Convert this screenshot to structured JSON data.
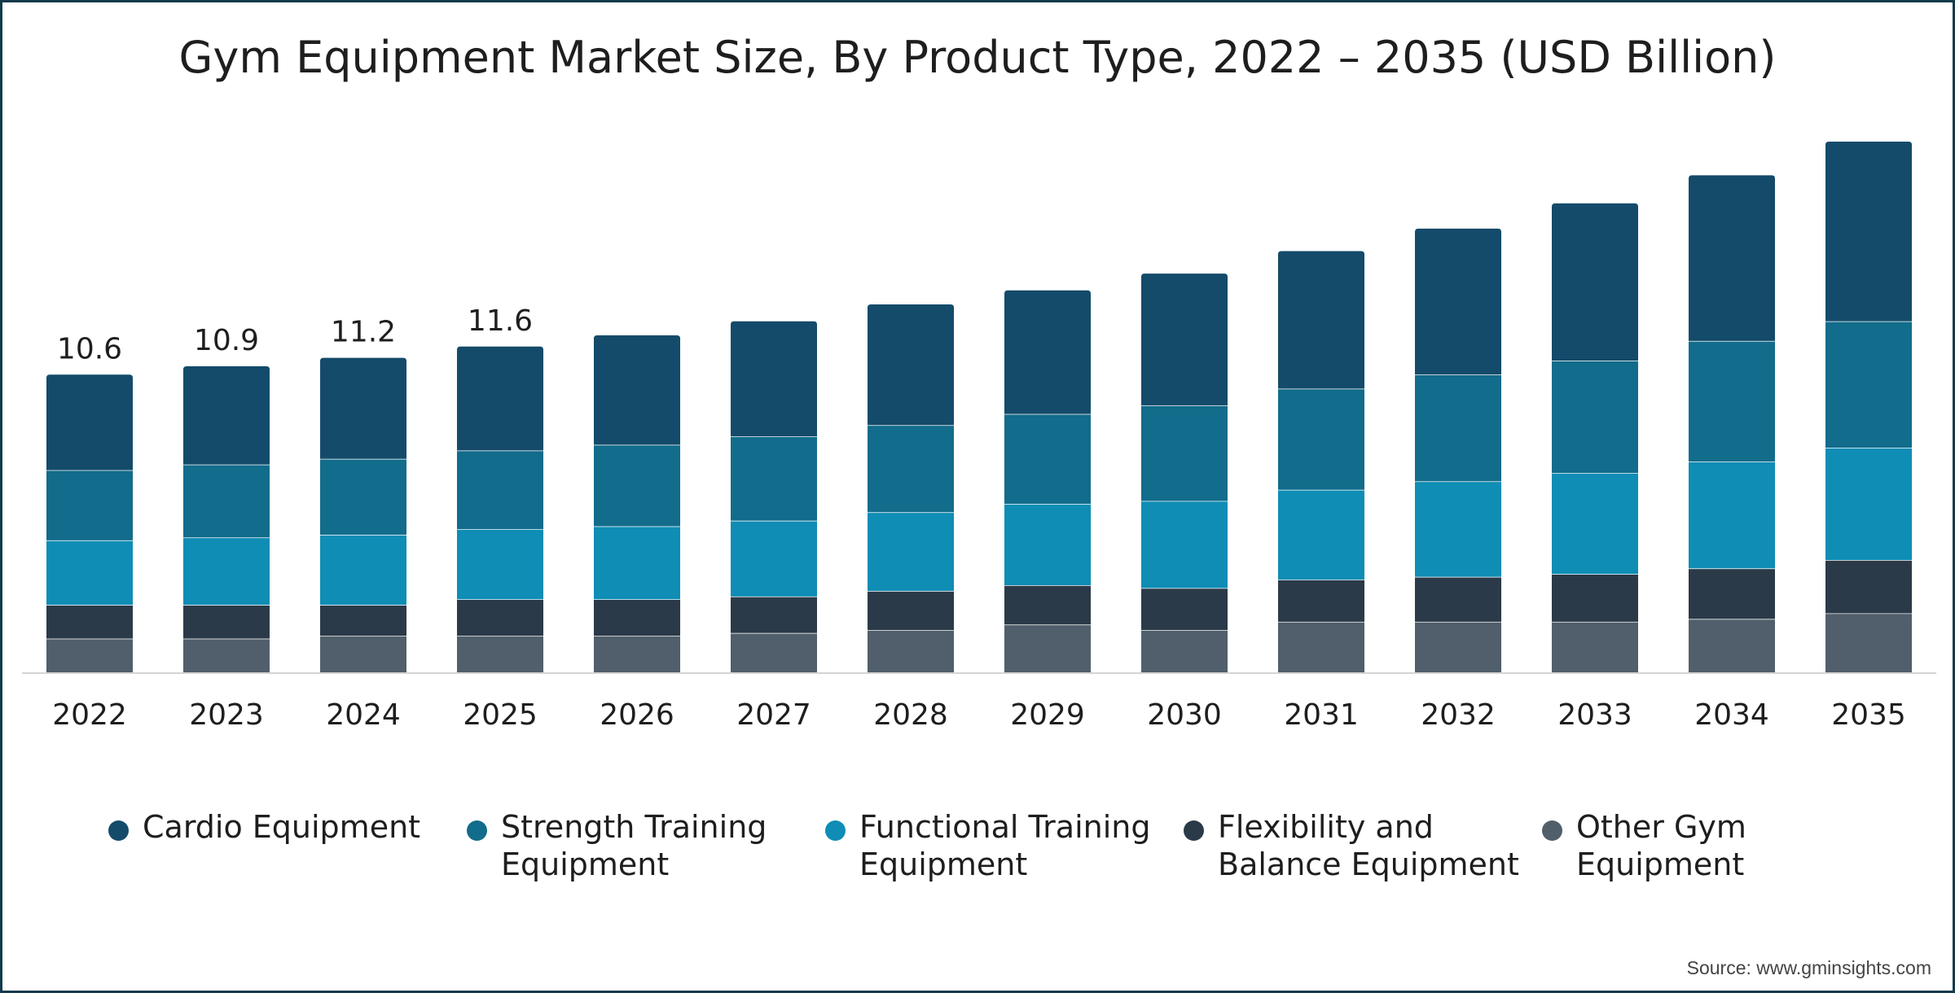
{
  "chart_data": {
    "type": "bar",
    "stacked": true,
    "title": "Gym Equipment Market Size, By Product Type, 2022 – 2035 (USD Billion)",
    "xlabel": "",
    "ylabel": "",
    "ylim": [
      0,
      20
    ],
    "grid": false,
    "legend_position": "bottom",
    "categories": [
      "2022",
      "2023",
      "2024",
      "2025",
      "2026",
      "2027",
      "2028",
      "2029",
      "2030",
      "2031",
      "2032",
      "2033",
      "2034",
      "2035"
    ],
    "series": [
      {
        "name": "Other Gym Equipment",
        "color": "#505f6b",
        "values": [
          1.2,
          1.2,
          1.3,
          1.3,
          1.3,
          1.4,
          1.5,
          1.7,
          1.5,
          1.8,
          1.8,
          1.8,
          1.9,
          2.1
        ]
      },
      {
        "name": "Flexibility and Balance Equipment",
        "color": "#2b3a48",
        "values": [
          1.2,
          1.2,
          1.1,
          1.3,
          1.3,
          1.3,
          1.4,
          1.4,
          1.5,
          1.5,
          1.6,
          1.7,
          1.8,
          1.9
        ]
      },
      {
        "name": "Functional Training Equipment",
        "color": "#0f8db5",
        "values": [
          2.3,
          2.4,
          2.5,
          2.5,
          2.6,
          2.7,
          2.8,
          2.9,
          3.1,
          3.2,
          3.4,
          3.6,
          3.8,
          4.0
        ]
      },
      {
        "name": "Strength Training Equipment",
        "color": "#126c8b",
        "values": [
          2.5,
          2.6,
          2.7,
          2.8,
          2.9,
          3.0,
          3.1,
          3.2,
          3.4,
          3.6,
          3.8,
          4.0,
          4.3,
          4.5
        ]
      },
      {
        "name": "Cardio Equipment",
        "color": "#144b6a",
        "values": [
          3.4,
          3.5,
          3.6,
          3.7,
          3.9,
          4.1,
          4.3,
          4.4,
          4.7,
          4.9,
          5.2,
          5.6,
          5.9,
          6.4
        ]
      }
    ],
    "data_labels": [
      {
        "category": "2022",
        "text": "10.6"
      },
      {
        "category": "2023",
        "text": "10.9"
      },
      {
        "category": "2024",
        "text": "11.2"
      },
      {
        "category": "2025",
        "text": "11.6"
      }
    ]
  },
  "legend": [
    {
      "name": "Cardio Equipment",
      "color": "#144b6a"
    },
    {
      "name": "Strength Training Equipment",
      "color": "#126c8b"
    },
    {
      "name": "Functional Training Equipment",
      "color": "#0f8db5"
    },
    {
      "name": "Flexibility and Balance Equipment",
      "color": "#2b3a48"
    },
    {
      "name": "Other Gym Equipment",
      "color": "#505f6b"
    }
  ],
  "source": "Source: www.gminsights.com"
}
